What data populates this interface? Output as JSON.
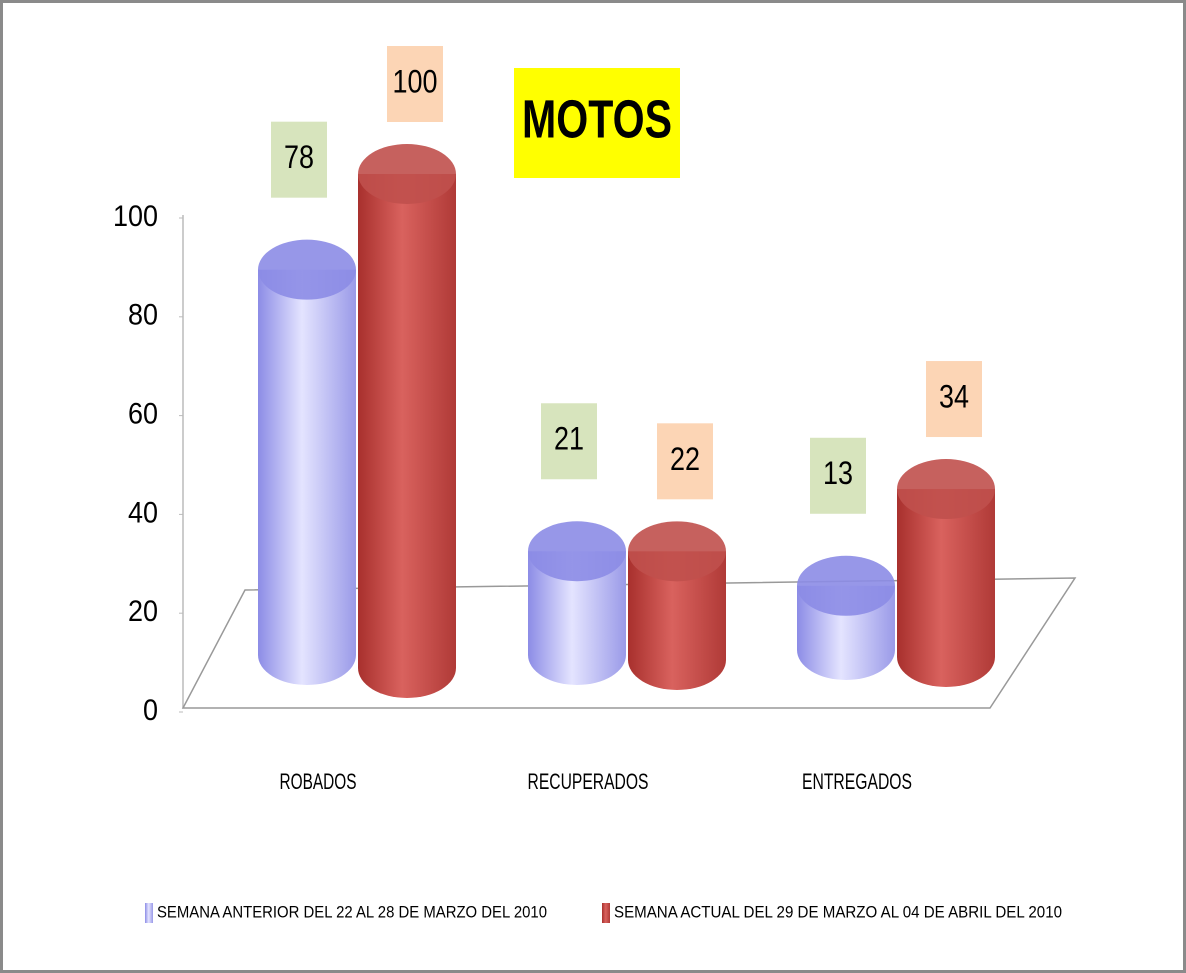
{
  "chart_data": {
    "type": "bar3d",
    "title": "MOTOS",
    "categories": [
      "ROBADOS",
      "RECUPERADOS",
      "ENTREGADOS"
    ],
    "series": [
      {
        "name": "SEMANA ANTERIOR DEL 22 AL 28 DE MARZO DEL 2010",
        "color": "#8c8ce6",
        "values": [
          78,
          21,
          13
        ]
      },
      {
        "name": "SEMANA ACTUAL DEL 29 DE MARZO AL 04 DE ABRIL DEL 2010",
        "color": "#c0504d",
        "values": [
          100,
          22,
          34
        ]
      }
    ],
    "ylim": [
      0,
      100
    ],
    "yticks": [
      0,
      20,
      40,
      60,
      80,
      100
    ]
  }
}
